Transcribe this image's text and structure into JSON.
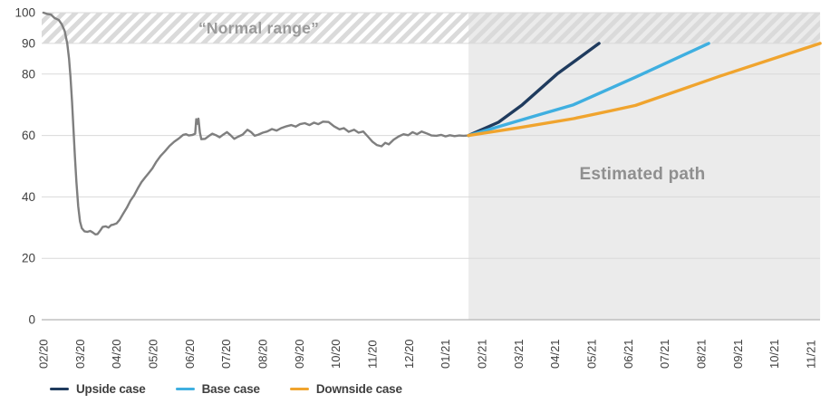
{
  "chart_data": {
    "type": "line",
    "x_axis": {
      "tick_labels": [
        "02/20",
        "03/20",
        "04/20",
        "05/20",
        "06/20",
        "07/20",
        "08/20",
        "09/20",
        "10/20",
        "11/20",
        "12/20",
        "01/21",
        "02/21",
        "03/21",
        "04/21",
        "05/21",
        "06/21",
        "07/21",
        "08/21",
        "09/21",
        "10/21",
        "11/21"
      ]
    },
    "y_axis": {
      "tick_labels": [
        0,
        20,
        40,
        60,
        80,
        90,
        100
      ],
      "range": [
        0,
        100
      ],
      "gridlines": [
        20,
        40,
        60,
        80,
        90,
        100
      ]
    },
    "grid": true,
    "legend_position": "bottom-left",
    "normal_range_band": {
      "from": 90,
      "to": 100,
      "label": "“Normal range”",
      "style": "diagonal-hatch"
    },
    "estimated_region": {
      "from_month": 11.63,
      "to_month": 21.25,
      "label": "Estimated path"
    },
    "historical": {
      "color": "#7f7f7f",
      "points": [
        [
          0,
          100
        ],
        [
          0.1,
          99.6
        ],
        [
          0.2,
          99.4
        ],
        [
          0.3,
          98.3
        ],
        [
          0.42,
          97.6
        ],
        [
          0.5,
          96.2
        ],
        [
          0.58,
          94
        ],
        [
          0.65,
          90
        ],
        [
          0.7,
          85
        ],
        [
          0.74,
          79
        ],
        [
          0.78,
          71
        ],
        [
          0.82,
          62
        ],
        [
          0.86,
          53
        ],
        [
          0.9,
          45
        ],
        [
          0.95,
          37
        ],
        [
          1.0,
          32
        ],
        [
          1.05,
          29.8
        ],
        [
          1.12,
          28.8
        ],
        [
          1.2,
          28.6
        ],
        [
          1.28,
          28.9
        ],
        [
          1.35,
          28.4
        ],
        [
          1.42,
          27.8
        ],
        [
          1.48,
          27.9
        ],
        [
          1.55,
          29
        ],
        [
          1.62,
          30.2
        ],
        [
          1.7,
          30.4
        ],
        [
          1.78,
          30
        ],
        [
          1.85,
          30.8
        ],
        [
          1.92,
          31
        ],
        [
          2.0,
          31.4
        ],
        [
          2.08,
          32.5
        ],
        [
          2.18,
          34.5
        ],
        [
          2.28,
          36.5
        ],
        [
          2.38,
          38.8
        ],
        [
          2.48,
          40.5
        ],
        [
          2.58,
          42.8
        ],
        [
          2.68,
          44.8
        ],
        [
          2.78,
          46.3
        ],
        [
          2.88,
          47.8
        ],
        [
          2.98,
          49.3
        ],
        [
          3.08,
          51.3
        ],
        [
          3.2,
          53.3
        ],
        [
          3.32,
          54.8
        ],
        [
          3.45,
          56.6
        ],
        [
          3.58,
          58
        ],
        [
          3.7,
          59
        ],
        [
          3.82,
          60.2
        ],
        [
          3.9,
          60.4
        ],
        [
          3.98,
          60
        ],
        [
          4.08,
          60.2
        ],
        [
          4.15,
          60.6
        ],
        [
          4.18,
          65.3
        ],
        [
          4.21,
          63.8
        ],
        [
          4.24,
          65.5
        ],
        [
          4.28,
          61
        ],
        [
          4.32,
          58.8
        ],
        [
          4.42,
          58.9
        ],
        [
          4.52,
          59.8
        ],
        [
          4.62,
          60.6
        ],
        [
          4.72,
          60.1
        ],
        [
          4.82,
          59.4
        ],
        [
          4.92,
          60.3
        ],
        [
          5.02,
          61.1
        ],
        [
          5.12,
          60.1
        ],
        [
          5.22,
          58.9
        ],
        [
          5.32,
          59.6
        ],
        [
          5.45,
          60.3
        ],
        [
          5.58,
          61.9
        ],
        [
          5.68,
          61.1
        ],
        [
          5.78,
          59.9
        ],
        [
          5.88,
          60.3
        ],
        [
          6.0,
          60.9
        ],
        [
          6.12,
          61.3
        ],
        [
          6.25,
          62.1
        ],
        [
          6.38,
          61.6
        ],
        [
          6.5,
          62.4
        ],
        [
          6.65,
          63
        ],
        [
          6.78,
          63.4
        ],
        [
          6.9,
          62.9
        ],
        [
          7.02,
          63.7
        ],
        [
          7.15,
          64
        ],
        [
          7.28,
          63.4
        ],
        [
          7.4,
          64.2
        ],
        [
          7.52,
          63.7
        ],
        [
          7.65,
          64.5
        ],
        [
          7.8,
          64.4
        ],
        [
          7.95,
          63
        ],
        [
          8.1,
          62
        ],
        [
          8.22,
          62.4
        ],
        [
          8.35,
          61.2
        ],
        [
          8.5,
          61.9
        ],
        [
          8.62,
          60.9
        ],
        [
          8.75,
          61.3
        ],
        [
          8.88,
          59.6
        ],
        [
          9.0,
          58
        ],
        [
          9.12,
          56.9
        ],
        [
          9.25,
          56.5
        ],
        [
          9.35,
          57.6
        ],
        [
          9.45,
          57.1
        ],
        [
          9.58,
          58.6
        ],
        [
          9.72,
          59.7
        ],
        [
          9.85,
          60.4
        ],
        [
          9.98,
          60.1
        ],
        [
          10.1,
          61.1
        ],
        [
          10.22,
          60.4
        ],
        [
          10.35,
          61.3
        ],
        [
          10.48,
          60.7
        ],
        [
          10.62,
          60
        ],
        [
          10.75,
          59.9
        ],
        [
          10.88,
          60.2
        ],
        [
          11.0,
          59.7
        ],
        [
          11.12,
          60.1
        ],
        [
          11.25,
          59.8
        ],
        [
          11.38,
          60
        ],
        [
          11.5,
          59.9
        ],
        [
          11.63,
          60
        ]
      ]
    },
    "scenarios": [
      {
        "name": "Upside case",
        "color": "#1f3b5e",
        "points": [
          [
            11.63,
            60
          ],
          [
            12.45,
            64.3
          ],
          [
            13.1,
            70
          ],
          [
            14.05,
            80
          ],
          [
            15.2,
            90
          ]
        ]
      },
      {
        "name": "Base case",
        "color": "#3fafe0",
        "points": [
          [
            11.63,
            60
          ],
          [
            13.05,
            65
          ],
          [
            14.5,
            70
          ],
          [
            16.2,
            79
          ],
          [
            18.2,
            90
          ]
        ]
      },
      {
        "name": "Downside case",
        "color": "#f0a42e",
        "points": [
          [
            11.63,
            60
          ],
          [
            13.0,
            62.5
          ],
          [
            14.5,
            65.5
          ],
          [
            15.5,
            68
          ],
          [
            16.2,
            69.8
          ],
          [
            18.5,
            79.3
          ],
          [
            21.25,
            90
          ]
        ]
      }
    ]
  },
  "colors": {
    "background": "#ffffff",
    "gridline": "#d9d9d9",
    "axis_line": "#b5b5b5",
    "estimated_region_fill": "#ebebeb",
    "hatch_stripe": "#dadada",
    "band_label_color": "#9a9a9a",
    "region_label_color": "#8f8f8f",
    "tick_label_color": "#3f3f3f",
    "legend_text_color": "#3f3f3f"
  }
}
